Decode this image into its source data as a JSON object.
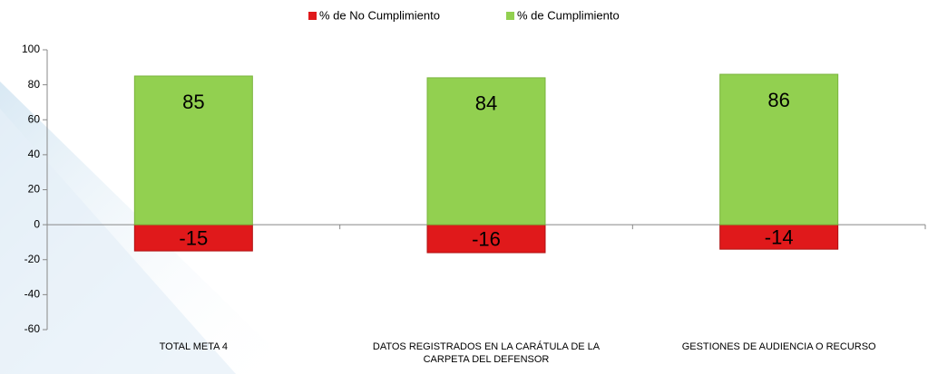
{
  "chart_data": {
    "type": "bar",
    "categories": [
      "TOTAL META 4",
      "DATOS REGISTRADOS  EN LA CARÁTULA DE LA CARPETA DEL DEFENSOR",
      "GESTIONES  DE AUDIENCIA  O RECURSO"
    ],
    "series": [
      {
        "name": "% de No Cumplimiento",
        "color": "#e0191b",
        "values": [
          -15,
          -16,
          -14
        ]
      },
      {
        "name": "% de Cumplimiento",
        "color": "#92d050",
        "values": [
          85,
          84,
          86
        ]
      }
    ],
    "ylim": [
      -60,
      100
    ],
    "yticks": [
      -60,
      -40,
      -20,
      0,
      20,
      40,
      60,
      80,
      100
    ],
    "legend": "top"
  }
}
